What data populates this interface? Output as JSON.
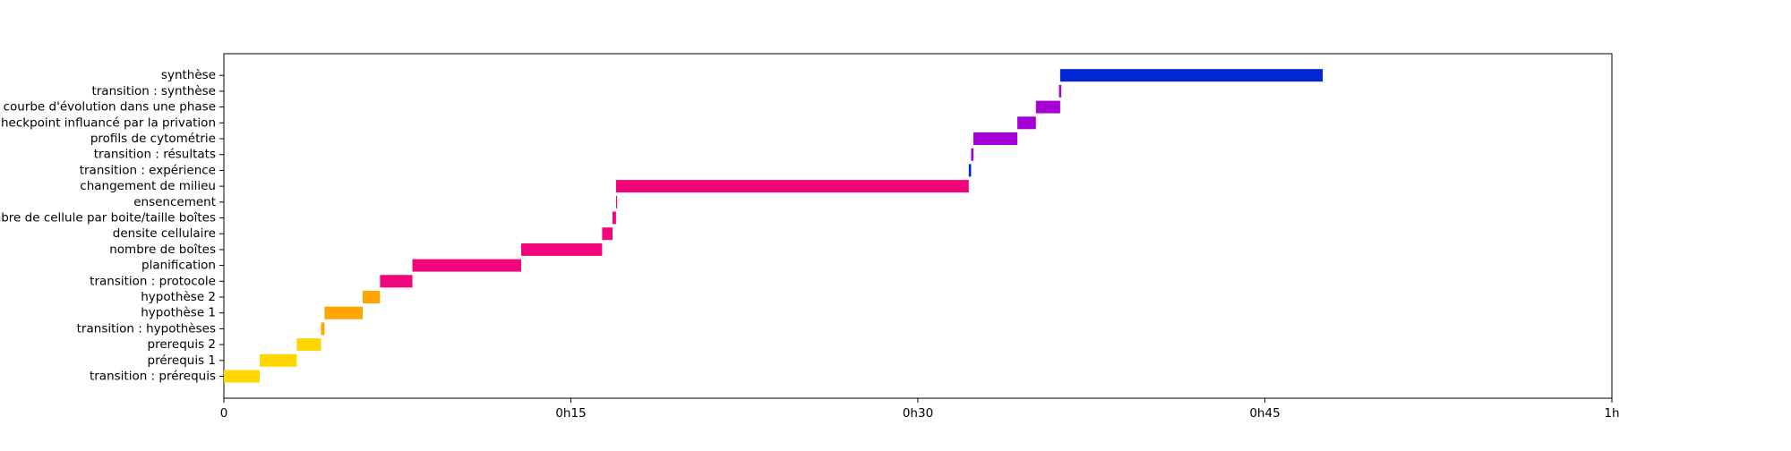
{
  "chart_data": {
    "type": "bar",
    "orientation": "horizontal",
    "title": "",
    "xlabel": "",
    "ylabel": "",
    "x_unit": "minutes",
    "xlim": [
      0,
      60
    ],
    "grid": false,
    "legend": "none",
    "x_ticks": [
      {
        "value": 0,
        "label": "0"
      },
      {
        "value": 15,
        "label": "0h15"
      },
      {
        "value": 30,
        "label": "0h30"
      },
      {
        "value": 45,
        "label": "0h45"
      },
      {
        "value": 60,
        "label": "1h"
      }
    ],
    "categories": [
      "transition : prérequis",
      "prérequis 1",
      "prerequis 2",
      "transition : hypothèses",
      "hypothèse 1",
      "hypothèse 2",
      "transition : protocole",
      "planification",
      "nombre de boîtes",
      "densite cellulaire",
      "nombre de cellule par boite/taille boîtes",
      "ensencement",
      "changement de milieu",
      "transition : expérience",
      "transition : résultats",
      "profils de cytométrie",
      "checkpoint influancé par la privation",
      "courbe d'évolution dans une phase",
      "transition : synthèse",
      "synthèse"
    ],
    "tasks": [
      {
        "label": "transition : prérequis",
        "start": 0.0,
        "end": 1.55,
        "color": "#FFD700"
      },
      {
        "label": "prérequis 1",
        "start": 1.55,
        "end": 3.15,
        "color": "#FFD700"
      },
      {
        "label": "prerequis 2",
        "start": 3.15,
        "end": 4.2,
        "color": "#FFD700"
      },
      {
        "label": "transition : hypothèses",
        "start": 4.2,
        "end": 4.35,
        "color": "#FFA500"
      },
      {
        "label": "hypothèse 1",
        "start": 4.35,
        "end": 6.0,
        "color": "#FFA500"
      },
      {
        "label": "hypothèse 2",
        "start": 6.0,
        "end": 6.75,
        "color": "#FFA500"
      },
      {
        "label": "transition : protocole",
        "start": 6.75,
        "end": 8.15,
        "color": "#F0057A"
      },
      {
        "label": "planification",
        "start": 8.15,
        "end": 12.85,
        "color": "#F0057A"
      },
      {
        "label": "nombre de boîtes",
        "start": 12.85,
        "end": 16.35,
        "color": "#F0057A"
      },
      {
        "label": "densite cellulaire",
        "start": 16.35,
        "end": 16.8,
        "color": "#F0057A"
      },
      {
        "label": "nombre de cellule par boite/taille boîtes",
        "start": 16.8,
        "end": 16.95,
        "color": "#F0057A"
      },
      {
        "label": "ensencement",
        "start": 16.95,
        "end": 17.0,
        "color": "#F0057A"
      },
      {
        "label": "changement de milieu",
        "start": 16.95,
        "end": 32.2,
        "color": "#F0057A"
      },
      {
        "label": "transition : expérience",
        "start": 32.2,
        "end": 32.3,
        "color": "#0026D6"
      },
      {
        "label": "transition : résultats",
        "start": 32.3,
        "end": 32.4,
        "color": "#A500D6"
      },
      {
        "label": "profils de cytométrie",
        "start": 32.4,
        "end": 34.3,
        "color": "#A500D6"
      },
      {
        "label": "checkpoint influancé par la privation",
        "start": 34.3,
        "end": 35.1,
        "color": "#A500D6"
      },
      {
        "label": "courbe d'évolution dans une phase",
        "start": 35.1,
        "end": 36.15,
        "color": "#A500D6"
      },
      {
        "label": "transition : synthèse",
        "start": 36.1,
        "end": 36.2,
        "color": "#A500D6"
      },
      {
        "label": "synthèse",
        "start": 36.15,
        "end": 47.5,
        "color": "#0026D6"
      }
    ]
  }
}
